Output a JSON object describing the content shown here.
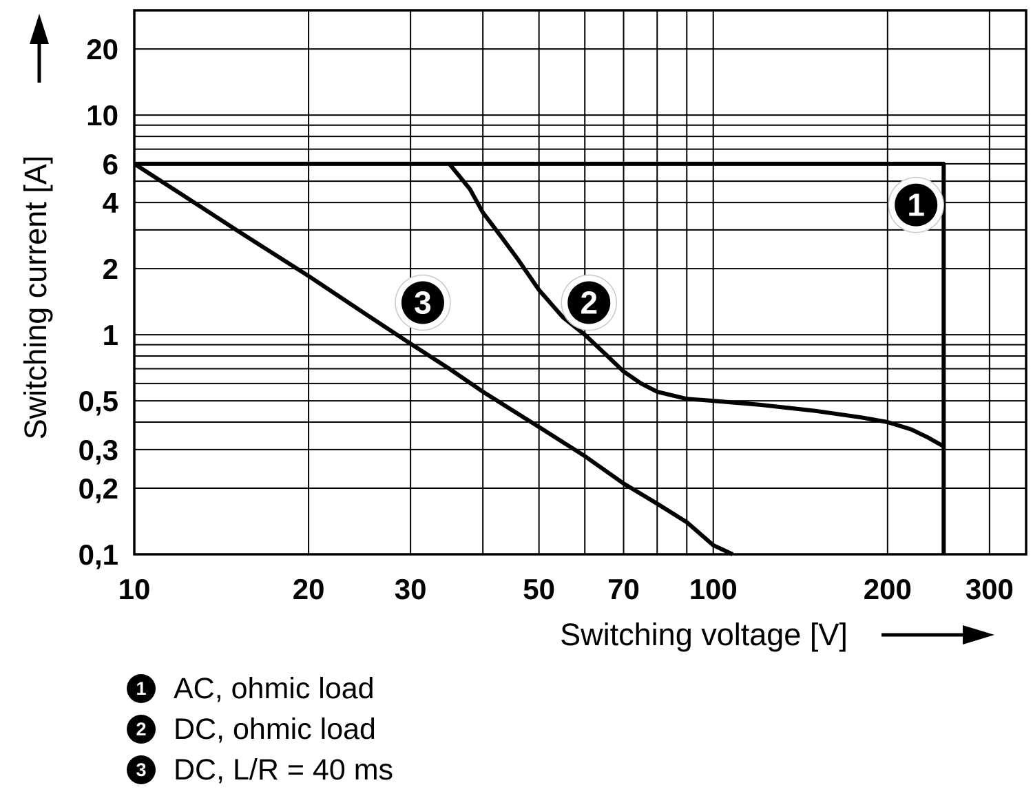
{
  "colors": {
    "background": "#ffffff",
    "line": "#000000",
    "grid": "#000000",
    "marker_fill": "#000000",
    "marker_text": "#ffffff",
    "marker_halo": "#c8c8c8"
  },
  "chart_data": {
    "type": "line",
    "title": "",
    "xlabel": "Switching voltage [V]",
    "ylabel": "Switching current [A]",
    "x_scale": "log",
    "y_scale": "log",
    "xlim": [
      10,
      347
    ],
    "ylim": [
      0.1,
      30
    ],
    "grid": true,
    "legend_position": "bottom-left",
    "x_ticks": [
      {
        "v": 10,
        "label": "10"
      },
      {
        "v": 20,
        "label": "20"
      },
      {
        "v": 30,
        "label": "30"
      },
      {
        "v": 50,
        "label": "50"
      },
      {
        "v": 70,
        "label": "70"
      },
      {
        "v": 100,
        "label": "100"
      },
      {
        "v": 200,
        "label": "200"
      },
      {
        "v": 300,
        "label": "300"
      }
    ],
    "y_ticks": [
      {
        "v": 20,
        "label": "20"
      },
      {
        "v": 10,
        "label": "10"
      },
      {
        "v": 6,
        "label": "6"
      },
      {
        "v": 4,
        "label": "4"
      },
      {
        "v": 2,
        "label": "2"
      },
      {
        "v": 1,
        "label": "1"
      },
      {
        "v": 0.5,
        "label": "0,5"
      },
      {
        "v": 0.3,
        "label": "0,3"
      },
      {
        "v": 0.2,
        "label": "0,2"
      },
      {
        "v": 0.1,
        "label": "0,1"
      }
    ],
    "x_gridlines": [
      10,
      20,
      30,
      40,
      50,
      60,
      70,
      80,
      90,
      100,
      200,
      300
    ],
    "y_gridlines": [
      0.1,
      0.2,
      0.3,
      0.4,
      0.5,
      0.6,
      0.7,
      0.8,
      0.9,
      1,
      2,
      3,
      4,
      5,
      6,
      7,
      8,
      9,
      10,
      20,
      30
    ],
    "series": [
      {
        "id": "1",
        "name": "AC, ohmic load",
        "points": [
          [
            10,
            6
          ],
          [
            250,
            6
          ],
          [
            250,
            0.1
          ]
        ]
      },
      {
        "id": "2",
        "name": "DC, ohmic load",
        "points": [
          [
            35,
            6
          ],
          [
            38,
            4.6
          ],
          [
            40,
            3.6
          ],
          [
            43,
            2.8
          ],
          [
            46,
            2.2
          ],
          [
            50,
            1.6
          ],
          [
            55,
            1.2
          ],
          [
            60,
            1.0
          ],
          [
            65,
            0.82
          ],
          [
            70,
            0.68
          ],
          [
            75,
            0.6
          ],
          [
            80,
            0.55
          ],
          [
            90,
            0.51
          ],
          [
            100,
            0.5
          ],
          [
            120,
            0.48
          ],
          [
            150,
            0.45
          ],
          [
            180,
            0.42
          ],
          [
            200,
            0.4
          ],
          [
            220,
            0.37
          ],
          [
            235,
            0.34
          ],
          [
            250,
            0.31
          ]
        ]
      },
      {
        "id": "3",
        "name": "DC, L/R = 40 ms",
        "points": [
          [
            10,
            6
          ],
          [
            12,
            4.4
          ],
          [
            15,
            3.0
          ],
          [
            20,
            1.85
          ],
          [
            25,
            1.25
          ],
          [
            30,
            0.91
          ],
          [
            35,
            0.7
          ],
          [
            40,
            0.55
          ],
          [
            50,
            0.38
          ],
          [
            60,
            0.28
          ],
          [
            70,
            0.21
          ],
          [
            80,
            0.17
          ],
          [
            90,
            0.14
          ],
          [
            100,
            0.11
          ],
          [
            108,
            0.1
          ]
        ]
      }
    ],
    "markers": [
      {
        "label": "1",
        "x": 224,
        "y": 3.9
      },
      {
        "label": "2",
        "x": 61,
        "y": 1.4
      },
      {
        "label": "3",
        "x": 31.5,
        "y": 1.4
      }
    ],
    "legend": [
      {
        "num": "1",
        "label": "AC, ohmic load"
      },
      {
        "num": "2",
        "label": "DC, ohmic load"
      },
      {
        "num": "3",
        "label": "DC, L/R = 40 ms"
      }
    ]
  }
}
